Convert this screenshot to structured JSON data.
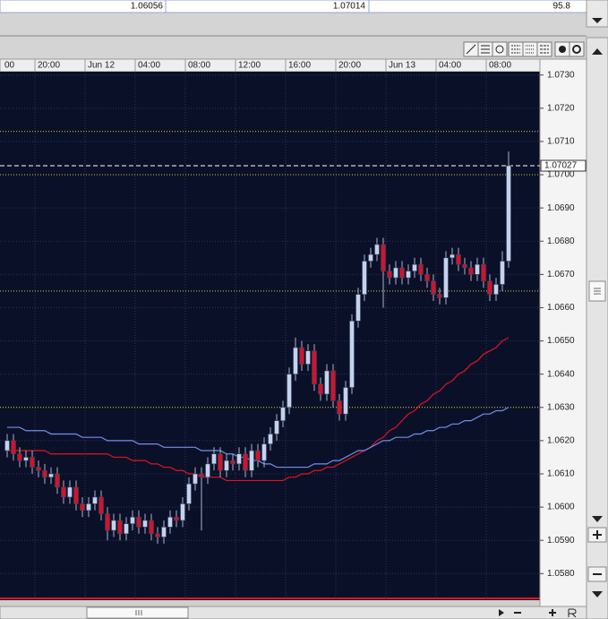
{
  "header": {
    "values": [
      "1.06056",
      "1.07014",
      "95.8"
    ]
  },
  "chart_data": {
    "type": "candlestick",
    "leading_time_label": "00",
    "categories": [
      null,
      null,
      null,
      null,
      null,
      "20:00",
      null,
      null,
      null,
      null,
      null,
      null,
      null,
      "Jun 12",
      null,
      null,
      null,
      null,
      null,
      null,
      null,
      "04:00",
      null,
      null,
      null,
      null,
      null,
      null,
      null,
      "08:00",
      null,
      null,
      null,
      null,
      null,
      null,
      null,
      "12:00",
      null,
      null,
      null,
      null,
      null,
      null,
      null,
      "16:00",
      null,
      null,
      null,
      null,
      null,
      null,
      null,
      "20:00",
      null,
      null,
      null,
      null,
      null,
      null,
      null,
      "Jun 13",
      null,
      null,
      null,
      null,
      null,
      null,
      null,
      "04:00",
      null,
      null,
      null,
      null,
      null,
      null,
      null,
      "08:00",
      null,
      null,
      null
    ],
    "open": [
      1.0617,
      1.062,
      1.0616,
      1.0614,
      1.0615,
      1.0612,
      1.0611,
      1.0609,
      1.061,
      1.0606,
      1.0603,
      1.0606,
      1.0601,
      1.0599,
      1.0601,
      1.0603,
      1.0598,
      1.0593,
      1.0596,
      1.0592,
      1.0595,
      1.0597,
      1.0594,
      1.0596,
      1.0592,
      1.0591,
      1.0594,
      1.0597,
      1.0596,
      1.0601,
      1.0607,
      1.061,
      1.0609,
      1.0613,
      1.0616,
      1.0611,
      1.0614,
      1.0613,
      1.0616,
      1.0611,
      1.0617,
      1.0614,
      1.0619,
      1.0622,
      1.0626,
      1.063,
      1.064,
      1.0648,
      1.0643,
      1.0647,
      1.0637,
      1.0634,
      1.0641,
      1.0632,
      1.0628,
      1.0636,
      1.0656,
      1.0664,
      1.0674,
      1.0676,
      1.0679,
      1.0671,
      1.0669,
      1.0672,
      1.0669,
      1.0671,
      1.0673,
      1.067,
      1.0668,
      1.0664,
      1.0663,
      1.0675,
      1.0676,
      1.0673,
      1.0672,
      1.067,
      1.0673,
      1.0668,
      1.0664,
      1.0667,
      1.0674
    ],
    "high": [
      1.0622,
      1.0622,
      1.0618,
      1.0617,
      1.0617,
      1.0614,
      1.0613,
      1.0612,
      1.0612,
      1.0608,
      1.0608,
      1.0608,
      1.0603,
      1.0603,
      1.0605,
      1.0605,
      1.06,
      1.0598,
      1.0598,
      1.0597,
      1.0599,
      1.0599,
      1.0598,
      1.0598,
      1.0594,
      1.0596,
      1.0599,
      1.0599,
      1.0603,
      1.0609,
      1.0612,
      1.0612,
      1.0615,
      1.0618,
      1.0618,
      1.0616,
      1.0616,
      1.0618,
      1.0618,
      1.0619,
      1.0619,
      1.0621,
      1.0624,
      1.0628,
      1.0632,
      1.0642,
      1.0651,
      1.065,
      1.0649,
      1.0649,
      1.0639,
      1.0643,
      1.0643,
      1.0634,
      1.0638,
      1.0658,
      1.0666,
      1.0676,
      1.0678,
      1.0681,
      1.0681,
      1.0673,
      1.0674,
      1.0674,
      1.0673,
      1.0675,
      1.0675,
      1.0672,
      1.067,
      1.0666,
      1.0677,
      1.0678,
      1.0678,
      1.0675,
      1.0674,
      1.0675,
      1.0675,
      1.067,
      1.0669,
      1.0677,
      1.0707
    ],
    "low": [
      1.0615,
      1.0614,
      1.0612,
      1.0612,
      1.061,
      1.0609,
      1.0607,
      1.0607,
      1.0604,
      1.0601,
      1.0601,
      1.0599,
      1.0597,
      1.0597,
      1.0599,
      1.0596,
      1.059,
      1.0591,
      1.059,
      1.059,
      1.0593,
      1.0592,
      1.0592,
      1.059,
      1.0589,
      1.0589,
      1.0592,
      1.0594,
      1.0594,
      1.0599,
      1.0605,
      1.0593,
      1.0607,
      1.0611,
      1.0609,
      1.0609,
      1.0611,
      1.0611,
      1.0609,
      1.0609,
      1.0612,
      1.0612,
      1.0617,
      1.062,
      1.0624,
      1.0628,
      1.0638,
      1.0641,
      1.0641,
      1.0635,
      1.0632,
      1.0632,
      1.063,
      1.0626,
      1.0626,
      1.0634,
      1.0654,
      1.0662,
      1.0672,
      1.0674,
      1.066,
      1.0667,
      1.0667,
      1.0667,
      1.0667,
      1.0669,
      1.0668,
      1.0666,
      1.0662,
      1.0661,
      1.0661,
      1.0673,
      1.0671,
      1.067,
      1.0668,
      1.0668,
      1.0666,
      1.0662,
      1.0662,
      1.0665,
      1.0672
    ],
    "close": [
      1.062,
      1.0616,
      1.0614,
      1.0615,
      1.0612,
      1.0611,
      1.0609,
      1.061,
      1.0606,
      1.0603,
      1.0606,
      1.0601,
      1.0599,
      1.0601,
      1.0603,
      1.0598,
      1.0593,
      1.0596,
      1.0592,
      1.0595,
      1.0597,
      1.0594,
      1.0596,
      1.0592,
      1.0591,
      1.0594,
      1.0597,
      1.0596,
      1.0601,
      1.0607,
      1.061,
      1.0609,
      1.0613,
      1.0616,
      1.0611,
      1.0614,
      1.0613,
      1.0616,
      1.0611,
      1.0617,
      1.0614,
      1.0619,
      1.0622,
      1.0626,
      1.063,
      1.064,
      1.0648,
      1.0643,
      1.0647,
      1.0637,
      1.0634,
      1.0641,
      1.0632,
      1.0628,
      1.0636,
      1.0656,
      1.0664,
      1.0674,
      1.0676,
      1.0679,
      1.0671,
      1.0669,
      1.0672,
      1.0669,
      1.0671,
      1.0673,
      1.067,
      1.0668,
      1.0664,
      1.0663,
      1.0675,
      1.0676,
      1.0673,
      1.0672,
      1.067,
      1.0673,
      1.0668,
      1.0664,
      1.0667,
      1.0674,
      1.07027
    ],
    "up_color": "#c4d2ee",
    "down_color": "#d0142c",
    "wick_color": "#a8b4cc",
    "series": [
      {
        "color": "#e0141e",
        "values": [
          1.0617,
          1.0617,
          1.0617,
          1.0617,
          1.0617,
          1.0617,
          1.0617,
          1.0616,
          1.0616,
          1.0616,
          1.0616,
          1.0616,
          1.0616,
          1.0616,
          1.0616,
          1.0616,
          1.0616,
          1.0615,
          1.0615,
          1.0615,
          1.0614,
          1.0614,
          1.0614,
          1.0613,
          1.0613,
          1.0612,
          1.0612,
          1.0611,
          1.0611,
          1.061,
          1.061,
          1.0609,
          1.0609,
          1.0609,
          1.0609,
          1.0608,
          1.0608,
          1.0608,
          1.0608,
          1.0608,
          1.0608,
          1.0608,
          1.0608,
          1.0608,
          1.0608,
          1.0609,
          1.0609,
          1.061,
          1.061,
          1.0611,
          1.0611,
          1.0612,
          1.0612,
          1.0613,
          1.0614,
          1.0615,
          1.0616,
          1.0617,
          1.0618,
          1.062,
          1.0621,
          1.0623,
          1.0624,
          1.0626,
          1.0628,
          1.0629,
          1.0631,
          1.0632,
          1.0634,
          1.0635,
          1.0637,
          1.0638,
          1.064,
          1.0641,
          1.0643,
          1.0644,
          1.0646,
          1.0647,
          1.0648,
          1.065,
          1.0651
        ]
      },
      {
        "color": "#6f8fe8",
        "values": [
          1.0624,
          1.0624,
          1.0624,
          1.0623,
          1.0623,
          1.0623,
          1.0623,
          1.0622,
          1.0622,
          1.0622,
          1.0622,
          1.0622,
          1.0621,
          1.0621,
          1.0621,
          1.0621,
          1.062,
          1.062,
          1.062,
          1.062,
          1.062,
          1.0619,
          1.0619,
          1.0619,
          1.0619,
          1.0618,
          1.0618,
          1.0618,
          1.0618,
          1.0618,
          1.0618,
          1.0617,
          1.0617,
          1.0617,
          1.0617,
          1.0616,
          1.0616,
          1.0615,
          1.0615,
          1.0614,
          1.0614,
          1.0613,
          1.0613,
          1.0612,
          1.0612,
          1.0612,
          1.0612,
          1.0612,
          1.0612,
          1.0613,
          1.0613,
          1.0613,
          1.0614,
          1.0614,
          1.0615,
          1.0616,
          1.0617,
          1.0617,
          1.0618,
          1.0619,
          1.062,
          1.062,
          1.0621,
          1.0621,
          1.0621,
          1.0622,
          1.0622,
          1.0623,
          1.0623,
          1.0624,
          1.0624,
          1.0625,
          1.0625,
          1.0626,
          1.0626,
          1.0627,
          1.0628,
          1.0628,
          1.0629,
          1.0629,
          1.063
        ]
      }
    ],
    "levels": [
      1.0713,
      1.07,
      1.0665,
      1.063
    ],
    "level_color": "#d8d820",
    "current_price": 1.07027,
    "ylim": [
      1.0572,
      1.0731
    ],
    "yticks": [
      {
        "value": 1.073,
        "label": "1.0730"
      },
      {
        "value": 1.072,
        "label": "1.0720"
      },
      {
        "value": 1.071,
        "label": "1.0710"
      },
      {
        "value": 1.07,
        "label": "1.0700"
      },
      {
        "value": 1.069,
        "label": "1.0690"
      },
      {
        "value": 1.068,
        "label": "1.0680"
      },
      {
        "value": 1.067,
        "label": "1.0670"
      },
      {
        "value": 1.066,
        "label": "1.0660"
      },
      {
        "value": 1.065,
        "label": "1.0650"
      },
      {
        "value": 1.064,
        "label": "1.0640"
      },
      {
        "value": 1.063,
        "label": "1.0630"
      },
      {
        "value": 1.062,
        "label": "1.0620"
      },
      {
        "value": 1.061,
        "label": "1.0610"
      },
      {
        "value": 1.06,
        "label": "1.0600"
      },
      {
        "value": 1.059,
        "label": "1.0590"
      },
      {
        "value": 1.058,
        "label": "1.0580"
      }
    ],
    "grid": true
  }
}
